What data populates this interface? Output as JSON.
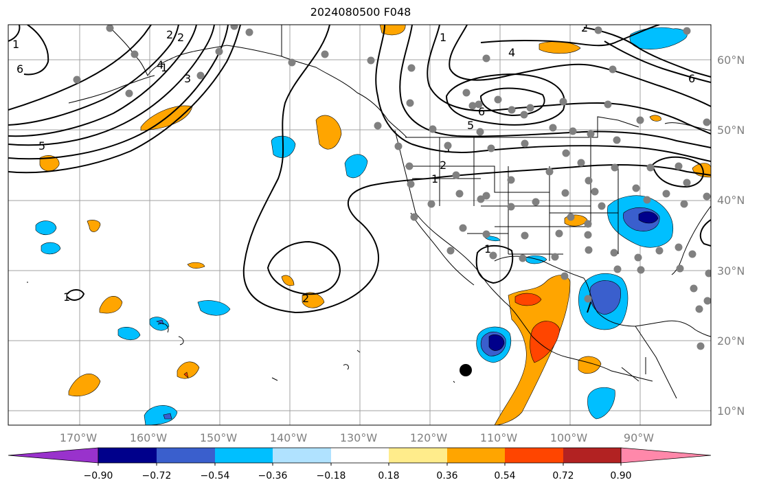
{
  "title": "2024080500 F048",
  "lat_labels": [
    "60°N",
    "50°N",
    "40°N",
    "30°N",
    "20°N",
    "10°N"
  ],
  "lon_labels": [
    "170°W",
    "160°W",
    "150°W",
    "140°W",
    "130°W",
    "120°W",
    "110°W",
    "100°W",
    "90°W"
  ],
  "contour_labels": [
    "6",
    "5",
    "4",
    "3",
    "2",
    "1",
    "2",
    "1",
    "6",
    "5",
    "4",
    "3",
    "2",
    "1",
    "6",
    "2",
    "1",
    "1",
    "2",
    "1"
  ],
  "colorbar": {
    "ticks": [
      "−0.90",
      "−0.72",
      "−0.54",
      "−0.36",
      "−0.18",
      "0.18",
      "0.36",
      "0.54",
      "0.72",
      "0.90"
    ],
    "colors": [
      "#9932CC",
      "#00008B",
      "#3A5FCD",
      "#00BFFF",
      "#B0E2FF",
      "#FFFFFF",
      "#FFEC8B",
      "#FFA500",
      "#FF4500",
      "#B22222",
      "#FF88AA"
    ]
  },
  "colors": {
    "grid": "#a0a0a0",
    "coast": "#000000",
    "station_dot": "#808080"
  }
}
